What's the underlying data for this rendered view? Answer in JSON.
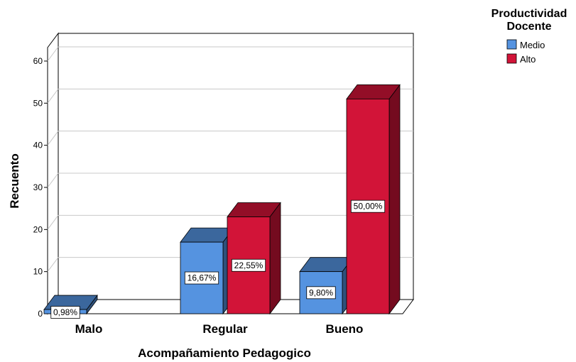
{
  "chart_data": {
    "type": "bar",
    "xlabel": "Acompañamiento Pedagogico",
    "ylabel": "Recuento",
    "categories": [
      "Malo",
      "Regular",
      "Bueno"
    ],
    "ylim": [
      0,
      60
    ],
    "yticks": [
      0,
      10,
      20,
      30,
      40,
      50,
      60
    ],
    "legend": {
      "title_lines": [
        "Productividad",
        "Docente"
      ],
      "position": "top-right"
    },
    "grid": true,
    "series": [
      {
        "name": "Medio",
        "color": "#5593E0",
        "values": [
          1,
          17,
          10
        ],
        "labels": [
          "0,98%",
          "16,67%",
          "9,80%"
        ]
      },
      {
        "name": "Alto",
        "color": "#D21438",
        "values": [
          0,
          23,
          51
        ],
        "labels": [
          "",
          "22,55%",
          "50,00%"
        ]
      }
    ]
  }
}
